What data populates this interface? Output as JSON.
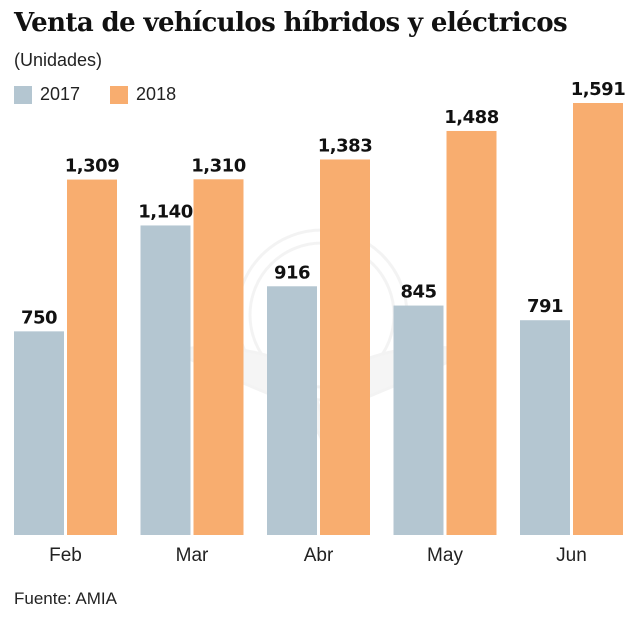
{
  "chart_data": {
    "type": "bar",
    "title": "Venta de vehículos híbridos y eléctricos",
    "subtitle": "(Unidades)",
    "xlabel": "",
    "ylabel": "",
    "categories": [
      "Feb",
      "Mar",
      "Abr",
      "May",
      "Jun"
    ],
    "series": [
      {
        "name": "2017",
        "color": "#b4c6d1",
        "values": [
          750,
          1140,
          916,
          845,
          791
        ],
        "labels": [
          "750",
          "1,140",
          "916",
          "845",
          "791"
        ]
      },
      {
        "name": "2018",
        "color": "#f8ad6f",
        "values": [
          1309,
          1310,
          1383,
          1488,
          1591
        ],
        "labels": [
          "1,309",
          "1,310",
          "1,383",
          "1,488",
          "1,591"
        ]
      }
    ],
    "ylim": [
      0,
      1591
    ],
    "grid": false,
    "legend_position": "top-left",
    "source": "Fuente: AMIA"
  }
}
